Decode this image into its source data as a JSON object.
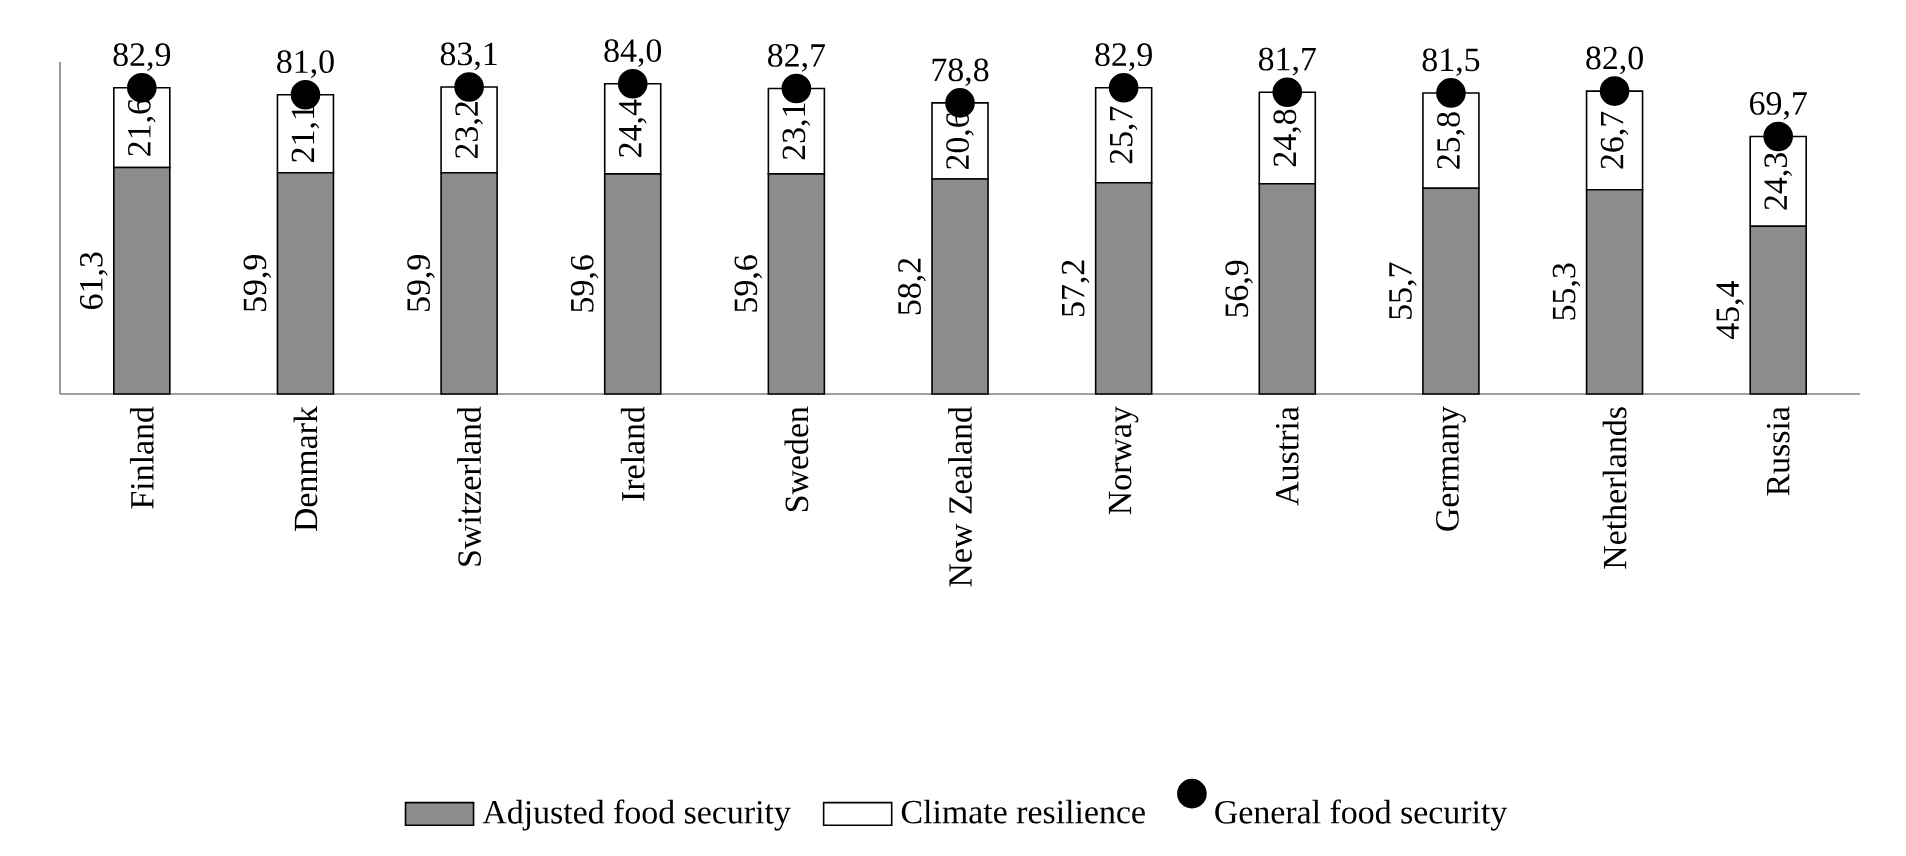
{
  "chart_data": {
    "type": "bar",
    "stacked": true,
    "legend": "bottom",
    "marker": "circle",
    "categories": [
      "Finland",
      "Denmark",
      "Switzerland",
      "Ireland",
      "Sweden",
      "New Zealand",
      "Norway",
      "Austria",
      "Germany",
      "Netherlands",
      "Russia"
    ],
    "series": [
      {
        "name": "Adjusted food security",
        "color": "#8c8c8c",
        "values": [
          61.3,
          59.9,
          59.9,
          59.6,
          59.6,
          58.2,
          57.2,
          56.9,
          55.7,
          55.3,
          45.4
        ],
        "value_labels": [
          "61,3",
          "59,9",
          "59,9",
          "59,6",
          "59,6",
          "58,2",
          "57,2",
          "56,9",
          "55,7",
          "55,3",
          "45,4"
        ]
      },
      {
        "name": "Climate resilience",
        "color": "#ffffff",
        "values": [
          21.6,
          21.1,
          23.2,
          24.4,
          23.1,
          20.6,
          25.7,
          24.8,
          25.8,
          26.7,
          24.3
        ],
        "value_labels": [
          "21,6",
          "21,1",
          "23,2",
          "24,4",
          "23,1",
          "20,6",
          "25,7",
          "24,8",
          "25,8",
          "26,7",
          "24,3"
        ]
      },
      {
        "name": "General food security",
        "type": "scatter",
        "color": "#000000",
        "x": [
          "Finland",
          "Denmark",
          "Switzerland",
          "Ireland",
          "Sweden",
          "New Zealand",
          "Norway",
          "Austria",
          "Germany",
          "Netherlands",
          "Russia"
        ],
        "values": [
          82.9,
          81.0,
          83.1,
          84.0,
          82.7,
          78.8,
          82.9,
          81.7,
          81.5,
          82.0,
          69.7
        ],
        "value_labels": [
          "82,9",
          "81,0",
          "83,1",
          "84,0",
          "82,7",
          "78,8",
          "82,9",
          "81,7",
          "81,5",
          "82,0",
          "69,7"
        ]
      }
    ]
  }
}
